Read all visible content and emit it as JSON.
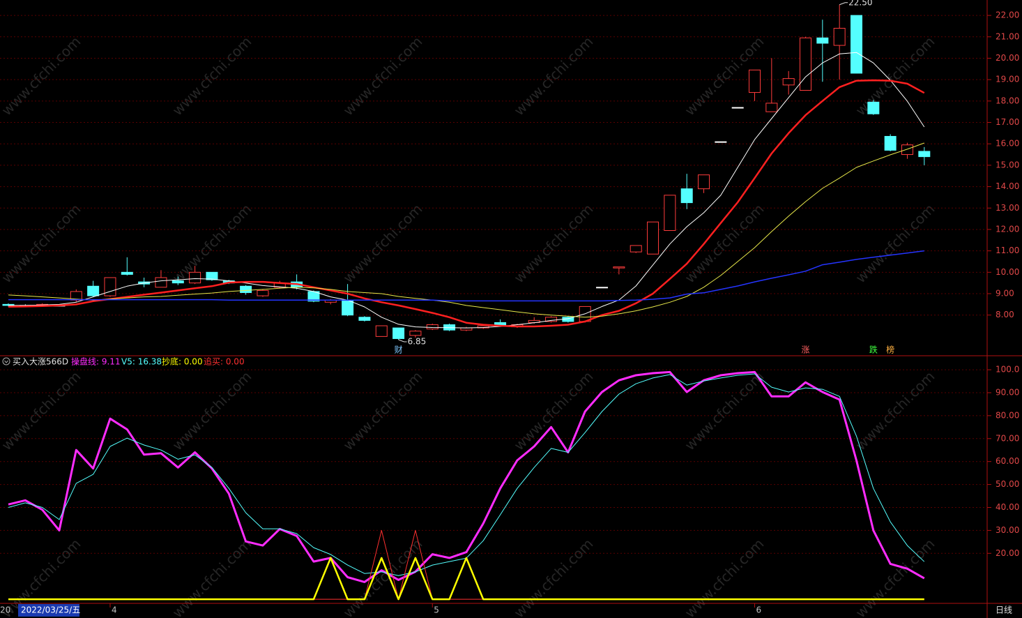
{
  "chart_data": [
    {
      "type": "candlestick",
      "open": [
        8.5,
        8.45,
        8.45,
        8.45,
        8.7,
        9.35,
        8.9,
        10.0,
        9.55,
        9.3,
        9.6,
        9.5,
        10.0,
        9.6,
        9.35,
        8.9,
        9.3,
        9.55,
        9.1,
        8.6,
        8.7,
        7.9,
        7.0,
        7.4,
        7.05,
        7.35,
        7.55,
        7.3,
        7.4,
        7.65,
        7.45,
        7.65,
        7.7,
        7.9,
        7.7,
        9.3,
        10.2,
        10.95,
        10.85,
        11.95,
        13.9,
        13.9,
        16.1,
        17.7,
        18.4,
        17.5,
        18.75,
        18.5,
        20.95,
        20.6,
        22.0,
        17.95,
        16.35,
        15.5,
        15.65
      ],
      "high": [
        8.55,
        8.5,
        8.55,
        8.5,
        9.2,
        9.6,
        9.75,
        10.7,
        9.75,
        10.1,
        9.8,
        10.3,
        10.0,
        9.65,
        9.4,
        9.2,
        9.6,
        9.9,
        9.15,
        8.75,
        9.45,
        7.95,
        7.5,
        7.4,
        7.3,
        7.6,
        7.6,
        7.45,
        7.55,
        7.8,
        7.6,
        7.9,
        7.95,
        7.95,
        8.4,
        9.3,
        10.25,
        11.25,
        12.35,
        13.6,
        14.6,
        14.55,
        16.1,
        17.7,
        19.45,
        20.0,
        19.4,
        21.0,
        21.8,
        22.5,
        22.0,
        18.05,
        16.45,
        16.05,
        15.85
      ],
      "low": [
        8.4,
        8.4,
        8.4,
        8.4,
        8.6,
        8.85,
        8.85,
        9.85,
        9.3,
        9.3,
        9.4,
        9.45,
        9.6,
        9.45,
        8.95,
        8.85,
        9.25,
        9.2,
        8.6,
        8.5,
        7.95,
        7.7,
        7.0,
        6.85,
        6.95,
        7.3,
        7.25,
        7.25,
        7.35,
        7.45,
        7.4,
        7.6,
        7.65,
        7.65,
        7.65,
        9.3,
        9.9,
        10.9,
        10.85,
        11.95,
        12.95,
        13.7,
        16.1,
        17.7,
        18.0,
        17.5,
        18.3,
        18.5,
        18.9,
        19.0,
        19.3,
        17.35,
        15.65,
        15.3,
        15.0
      ],
      "close": [
        8.45,
        8.45,
        8.5,
        8.45,
        9.1,
        8.9,
        9.75,
        9.9,
        9.45,
        9.75,
        9.5,
        10.0,
        9.65,
        9.5,
        9.05,
        9.15,
        9.5,
        9.3,
        8.65,
        8.7,
        8.0,
        7.75,
        7.5,
        6.9,
        7.25,
        7.55,
        7.3,
        7.4,
        7.5,
        7.5,
        7.55,
        7.75,
        7.9,
        7.7,
        8.4,
        9.3,
        10.25,
        11.25,
        12.35,
        13.6,
        13.25,
        14.55,
        16.1,
        17.7,
        19.45,
        17.9,
        19.05,
        20.95,
        20.7,
        21.4,
        19.3,
        17.4,
        15.7,
        15.95,
        15.4
      ],
      "up_color": "#ff3c3c",
      "down_color": "#54ffff",
      "flat_color": "#ffffff",
      "series": [
        {
          "color": "#ffffff",
          "width": 1,
          "values": [
            8.45,
            8.45,
            8.47,
            8.5,
            8.6,
            8.85,
            9.1,
            9.35,
            9.5,
            9.6,
            9.65,
            9.7,
            9.68,
            9.6,
            9.5,
            9.38,
            9.32,
            9.25,
            9.1,
            8.85,
            8.7,
            8.38,
            7.9,
            7.57,
            7.45,
            7.42,
            7.41,
            7.4,
            7.42,
            7.47,
            7.55,
            7.64,
            7.75,
            7.83,
            8.06,
            8.4,
            8.7,
            9.36,
            10.34,
            11.32,
            12.13,
            12.78,
            13.6,
            14.9,
            16.2,
            17.18,
            18.16,
            19.13,
            19.78,
            20.2,
            20.27,
            19.78,
            18.97,
            17.99,
            16.79
          ]
        },
        {
          "color": "#ff2020",
          "width": 2.5,
          "values": [
            8.39,
            8.4,
            8.42,
            8.45,
            8.5,
            8.65,
            8.75,
            8.85,
            8.95,
            9.05,
            9.15,
            9.25,
            9.35,
            9.52,
            9.55,
            9.55,
            9.5,
            9.45,
            9.3,
            9.15,
            9.0,
            8.78,
            8.6,
            8.45,
            8.28,
            8.1,
            7.9,
            7.64,
            7.55,
            7.5,
            7.47,
            7.47,
            7.5,
            7.55,
            7.7,
            8.0,
            8.2,
            8.55,
            9.0,
            9.69,
            10.4,
            11.32,
            12.3,
            13.27,
            14.4,
            15.55,
            16.5,
            17.34,
            18.0,
            18.65,
            18.95,
            18.97,
            18.95,
            18.81,
            18.38
          ]
        },
        {
          "color": "#e8e84a",
          "width": 1,
          "values": [
            8.94,
            8.9,
            8.85,
            8.8,
            8.75,
            8.7,
            8.75,
            8.8,
            8.85,
            8.87,
            8.93,
            8.98,
            9.03,
            9.1,
            9.15,
            9.2,
            9.25,
            9.3,
            9.27,
            9.2,
            9.1,
            9.05,
            9.0,
            8.87,
            8.78,
            8.7,
            8.6,
            8.45,
            8.35,
            8.25,
            8.15,
            8.06,
            8.0,
            7.95,
            7.9,
            7.95,
            8.06,
            8.2,
            8.38,
            8.6,
            8.87,
            9.3,
            9.85,
            10.5,
            11.15,
            11.9,
            12.62,
            13.3,
            13.92,
            14.4,
            14.9,
            15.2,
            15.49,
            15.75,
            16.04
          ]
        },
        {
          "color": "#2434ff",
          "width": 1.5,
          "values": [
            8.72,
            8.72,
            8.72,
            8.72,
            8.72,
            8.72,
            8.72,
            8.72,
            8.72,
            8.72,
            8.72,
            8.72,
            8.72,
            8.7,
            8.7,
            8.7,
            8.7,
            8.7,
            8.7,
            8.7,
            8.7,
            8.7,
            8.7,
            8.7,
            8.7,
            8.7,
            8.66,
            8.66,
            8.66,
            8.66,
            8.66,
            8.66,
            8.66,
            8.66,
            8.66,
            8.66,
            8.68,
            8.7,
            8.74,
            8.8,
            8.98,
            9.04,
            9.2,
            9.36,
            9.55,
            9.72,
            9.88,
            10.05,
            10.35,
            10.47,
            10.6,
            10.7,
            10.8,
            10.9,
            11.0
          ]
        }
      ],
      "ylim": [
        6.1,
        22.72
      ],
      "yticks": [
        {
          "value": 8,
          "label": "8.00"
        },
        {
          "value": 9,
          "label": "9.00"
        },
        {
          "value": 10,
          "label": "10.00"
        },
        {
          "value": 11,
          "label": "11.00"
        },
        {
          "value": 12,
          "label": "12.00"
        },
        {
          "value": 13,
          "label": "13.00"
        },
        {
          "value": 14,
          "label": "14.00"
        },
        {
          "value": 15,
          "label": "15.00"
        },
        {
          "value": 16,
          "label": "16.00"
        },
        {
          "value": 17,
          "label": "17.00"
        },
        {
          "value": 18,
          "label": "18.00"
        },
        {
          "value": 19,
          "label": "19.00"
        },
        {
          "value": 20,
          "label": "20.00"
        },
        {
          "value": 21,
          "label": "21.00"
        },
        {
          "value": 22,
          "label": "22.00"
        }
      ],
      "grid": true,
      "annotations": [
        {
          "value": 22.5,
          "label": "22.50",
          "index": 49,
          "at": "high"
        },
        {
          "value": 6.85,
          "label": "6.85",
          "index": 23,
          "at": "low"
        }
      ],
      "signals": [
        {
          "text": "财",
          "index": 23,
          "color": "#7fc8ff"
        },
        {
          "text": "涨",
          "index": 47,
          "color": "#ff6060"
        },
        {
          "text": "跌",
          "index": 51,
          "color": "#40ff40"
        },
        {
          "text": "榜",
          "index": 52,
          "color": "#ffb040"
        }
      ]
    },
    {
      "type": "line",
      "title": "买入大涨566D",
      "series": [
        {
          "name": "操盘线",
          "legend": "操盘线: 9.11",
          "color": "#ff2cff",
          "width": 3,
          "values": [
            41.3,
            43.1,
            39,
            30,
            65,
            57,
            78.7,
            74,
            63,
            63.6,
            57.4,
            64,
            57,
            46,
            25.2,
            23.4,
            30.6,
            27.6,
            16.4,
            18,
            9.6,
            7.5,
            12.6,
            8.4,
            12,
            19.6,
            18,
            20.5,
            33,
            48.3,
            60.5,
            66.6,
            75,
            64,
            81.8,
            90.3,
            95.4,
            97.6,
            98.5,
            99,
            90.3,
            95.4,
            97.6,
            98.5,
            99,
            88.4,
            88.4,
            94.5,
            90.3,
            87,
            60.5,
            30,
            15.4,
            13.3,
            9.11
          ]
        },
        {
          "name": "V5",
          "legend": "V5: 16.38",
          "color": "#54ffff",
          "width": 1,
          "values": [
            40,
            42,
            40,
            34.7,
            50.5,
            54.4,
            66.6,
            70.2,
            67.2,
            65,
            61,
            62.9,
            57.4,
            48.3,
            37.7,
            30.7,
            30.7,
            28.6,
            22.5,
            19.5,
            14.9,
            11.2,
            11.9,
            10.3,
            11.9,
            14.9,
            16.4,
            17.9,
            25.5,
            36.8,
            48.3,
            57.4,
            65.7,
            64,
            72.6,
            81.8,
            89.4,
            93.9,
            96.4,
            97.9,
            93.3,
            95.1,
            96.4,
            97.6,
            98.2,
            92.4,
            90.3,
            92.1,
            91.5,
            88.4,
            71.1,
            48.3,
            33.7,
            23.4,
            16.38
          ]
        },
        {
          "name": "追买",
          "legend": "追买: 0.00",
          "color": "#ff3030",
          "width": 1,
          "values": [
            0,
            0,
            0,
            0,
            0,
            0,
            0,
            0,
            0,
            0,
            0,
            0,
            0,
            0,
            0,
            0,
            0,
            0,
            0,
            0,
            0,
            0,
            30,
            0,
            30,
            0,
            0,
            0,
            0,
            0,
            0,
            0,
            0,
            0,
            0,
            0,
            0,
            0,
            0,
            0,
            0,
            0,
            0,
            0,
            0,
            0,
            0,
            0,
            0,
            0,
            0,
            0,
            0,
            0,
            0
          ]
        },
        {
          "name": "抄底",
          "legend": "抄底: 0.00",
          "color": "#ffff00",
          "width": 2.5,
          "values": [
            0,
            0,
            0,
            0,
            0,
            0,
            0,
            0,
            0,
            0,
            0,
            0,
            0,
            0,
            0,
            0,
            0,
            0,
            0,
            18,
            0,
            0,
            18,
            0,
            18,
            0,
            0,
            18,
            0,
            0,
            0,
            0,
            0,
            0,
            0,
            0,
            0,
            0,
            0,
            0,
            0,
            0,
            0,
            0,
            0,
            0,
            0,
            0,
            0,
            0,
            0,
            0,
            0,
            0,
            0
          ]
        }
      ],
      "ylim": [
        -1.8,
        105.5
      ],
      "yticks": [
        {
          "value": 20,
          "label": "20.00"
        },
        {
          "value": 30,
          "label": "30.00"
        },
        {
          "value": 40,
          "label": "40.00"
        },
        {
          "value": 50,
          "label": "50.00"
        },
        {
          "value": 60,
          "label": "60.00"
        },
        {
          "value": 70,
          "label": "70.00"
        },
        {
          "value": 80,
          "label": "80.00"
        },
        {
          "value": 90,
          "label": "90.00"
        },
        {
          "value": 100,
          "label": "100.0"
        }
      ],
      "grid": true
    }
  ],
  "x_axis": {
    "left": "20",
    "date": "2022/03/25/五",
    "months": [
      {
        "label": "4",
        "index": 6
      },
      {
        "label": "5",
        "index": 25
      },
      {
        "label": "6",
        "index": 44
      }
    ],
    "period": "日线"
  },
  "watermark": "www.cfchi.com"
}
